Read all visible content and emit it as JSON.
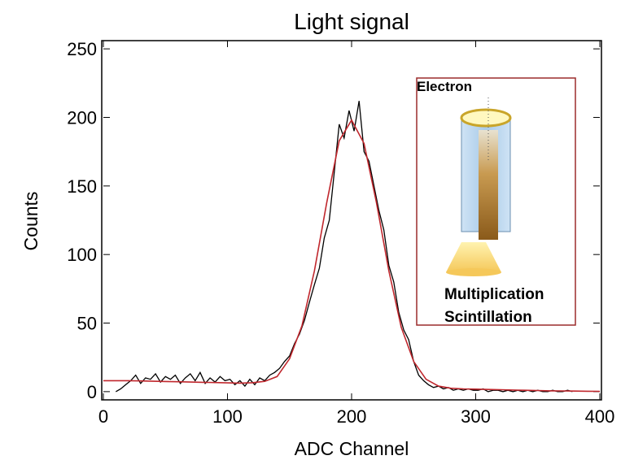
{
  "chart_data": {
    "type": "line",
    "title": "Light signal",
    "xlabel": "ADC Channel",
    "ylabel": "Counts",
    "xlim": [
      0,
      400
    ],
    "xticks": [
      0,
      100,
      200,
      300,
      400
    ],
    "ylim": [
      -6,
      256
    ],
    "yticks": [
      0,
      50,
      100,
      150,
      200,
      250
    ],
    "series": [
      {
        "color": "#000000",
        "x": [
          10,
          14,
          18,
          22,
          26,
          30,
          34,
          38,
          42,
          46,
          50,
          54,
          58,
          62,
          66,
          70,
          74,
          78,
          82,
          86,
          90,
          94,
          98,
          102,
          106,
          110,
          114,
          118,
          122,
          126,
          130,
          134,
          138,
          142,
          146,
          150,
          154,
          158,
          162,
          166,
          170,
          174,
          178,
          182,
          186,
          190,
          194,
          198,
          202,
          206,
          210,
          214,
          218,
          222,
          226,
          230,
          234,
          238,
          242,
          246,
          250,
          254,
          258,
          262,
          266,
          270,
          274,
          278,
          282,
          286,
          290,
          294,
          298,
          302,
          306,
          310,
          314,
          318,
          322,
          326,
          330,
          334,
          338,
          342,
          346,
          350,
          354,
          358,
          362,
          366,
          370,
          374,
          378
        ],
        "values": [
          0,
          2,
          5,
          8,
          12,
          6,
          10,
          9,
          13,
          7,
          11,
          9,
          12,
          6,
          10,
          13,
          8,
          14,
          6,
          10,
          7,
          11,
          8,
          9,
          5,
          8,
          4,
          9,
          5,
          10,
          8,
          12,
          14,
          17,
          22,
          26,
          35,
          42,
          52,
          65,
          78,
          90,
          112,
          125,
          160,
          195,
          185,
          205,
          190,
          212,
          175,
          168,
          150,
          132,
          118,
          92,
          80,
          58,
          45,
          38,
          22,
          12,
          8,
          5,
          3,
          4,
          2,
          3,
          1,
          2,
          1,
          2,
          1,
          1,
          2,
          0,
          1,
          1,
          0,
          1,
          0,
          1,
          0,
          1,
          0,
          1,
          0,
          0,
          1,
          0,
          0,
          1,
          0
        ]
      },
      {
        "color": "#c0272d",
        "x": [
          0,
          10,
          20,
          30,
          40,
          50,
          60,
          70,
          80,
          90,
          100,
          110,
          120,
          130,
          140,
          150,
          160,
          170,
          180,
          190,
          200,
          210,
          220,
          230,
          240,
          250,
          260,
          270,
          280,
          290,
          300,
          310,
          320,
          330,
          340,
          350,
          360,
          370,
          380,
          390,
          400
        ],
        "values": [
          8,
          8,
          8,
          7.8,
          7.6,
          7.4,
          7.2,
          7,
          6.8,
          6.6,
          6.4,
          6.2,
          6.5,
          7.5,
          11,
          24,
          48,
          88,
          138,
          183,
          198,
          181,
          138,
          88,
          47,
          22,
          9,
          4,
          2.5,
          2,
          1.8,
          1.6,
          1.4,
          1.2,
          1,
          0.8,
          0.6,
          0.5,
          0.4,
          0.3,
          0.2
        ]
      }
    ],
    "annotations": [
      "Electron",
      "Multiplication",
      "Scintillation"
    ]
  }
}
